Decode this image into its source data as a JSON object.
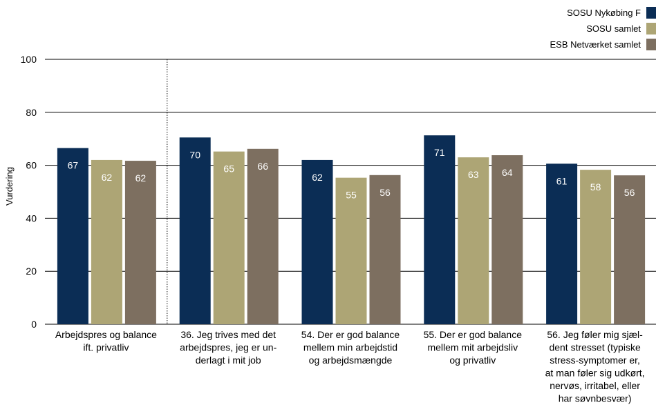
{
  "chart_data": {
    "type": "bar",
    "ylabel": "Vurdering",
    "ylim": [
      0,
      100
    ],
    "yticks": [
      0,
      20,
      40,
      60,
      80,
      100
    ],
    "grid": true,
    "legend_position": "top-right",
    "categories": [
      [
        "Arbejdspres og balance",
        "ift. privatliv"
      ],
      [
        "36. Jeg trives med det",
        "arbejdspres, jeg er un-",
        "derlagt i mit job"
      ],
      [
        "54. Der er god balance",
        "mellem min arbejdstid",
        "og arbejdsmængde"
      ],
      [
        "55. Der er god balance",
        "mellem mit arbejdsliv",
        "og privatliv"
      ],
      [
        "56. Jeg føler mig sjæl-",
        "dent stresset (typiske",
        "stress-symptomer er,",
        "at man føler sig udkørt,",
        "nervøs, irritabel, eller",
        "har søvnbesvær)"
      ]
    ],
    "series": [
      {
        "name": "SOSU Nykøbing F",
        "color": "#0b2d55",
        "label_color": "#ffffff",
        "values": [
          66.5,
          70.5,
          62,
          71.3,
          60.6
        ],
        "labels": [
          "67",
          "70",
          "62",
          "71",
          "61"
        ]
      },
      {
        "name": "SOSU samlet",
        "color": "#ada575",
        "label_color": "#ffffff",
        "values": [
          62,
          65.2,
          55.3,
          63,
          58.3
        ],
        "labels": [
          "62",
          "65",
          "55",
          "63",
          "58"
        ]
      },
      {
        "name": "ESB Netværket samlet",
        "color": "#7d6f60",
        "label_color": "#ffffff",
        "values": [
          61.7,
          66.2,
          56.3,
          63.8,
          56.2
        ],
        "labels": [
          "62",
          "66",
          "56",
          "64",
          "56"
        ]
      }
    ]
  }
}
